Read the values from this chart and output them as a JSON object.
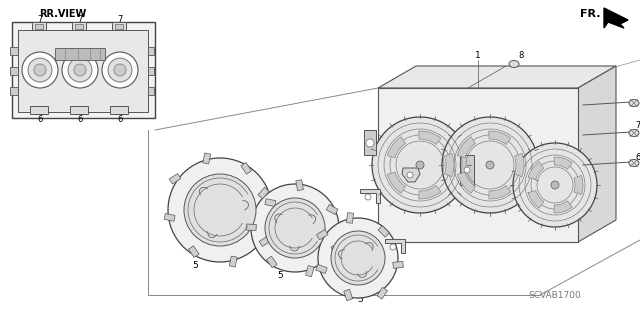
{
  "bg_color": "#ffffff",
  "diagram_code": "SCVAB1700",
  "line_color": "#333333",
  "light_gray": "#cccccc",
  "mid_gray": "#999999",
  "dark_gray": "#555555"
}
